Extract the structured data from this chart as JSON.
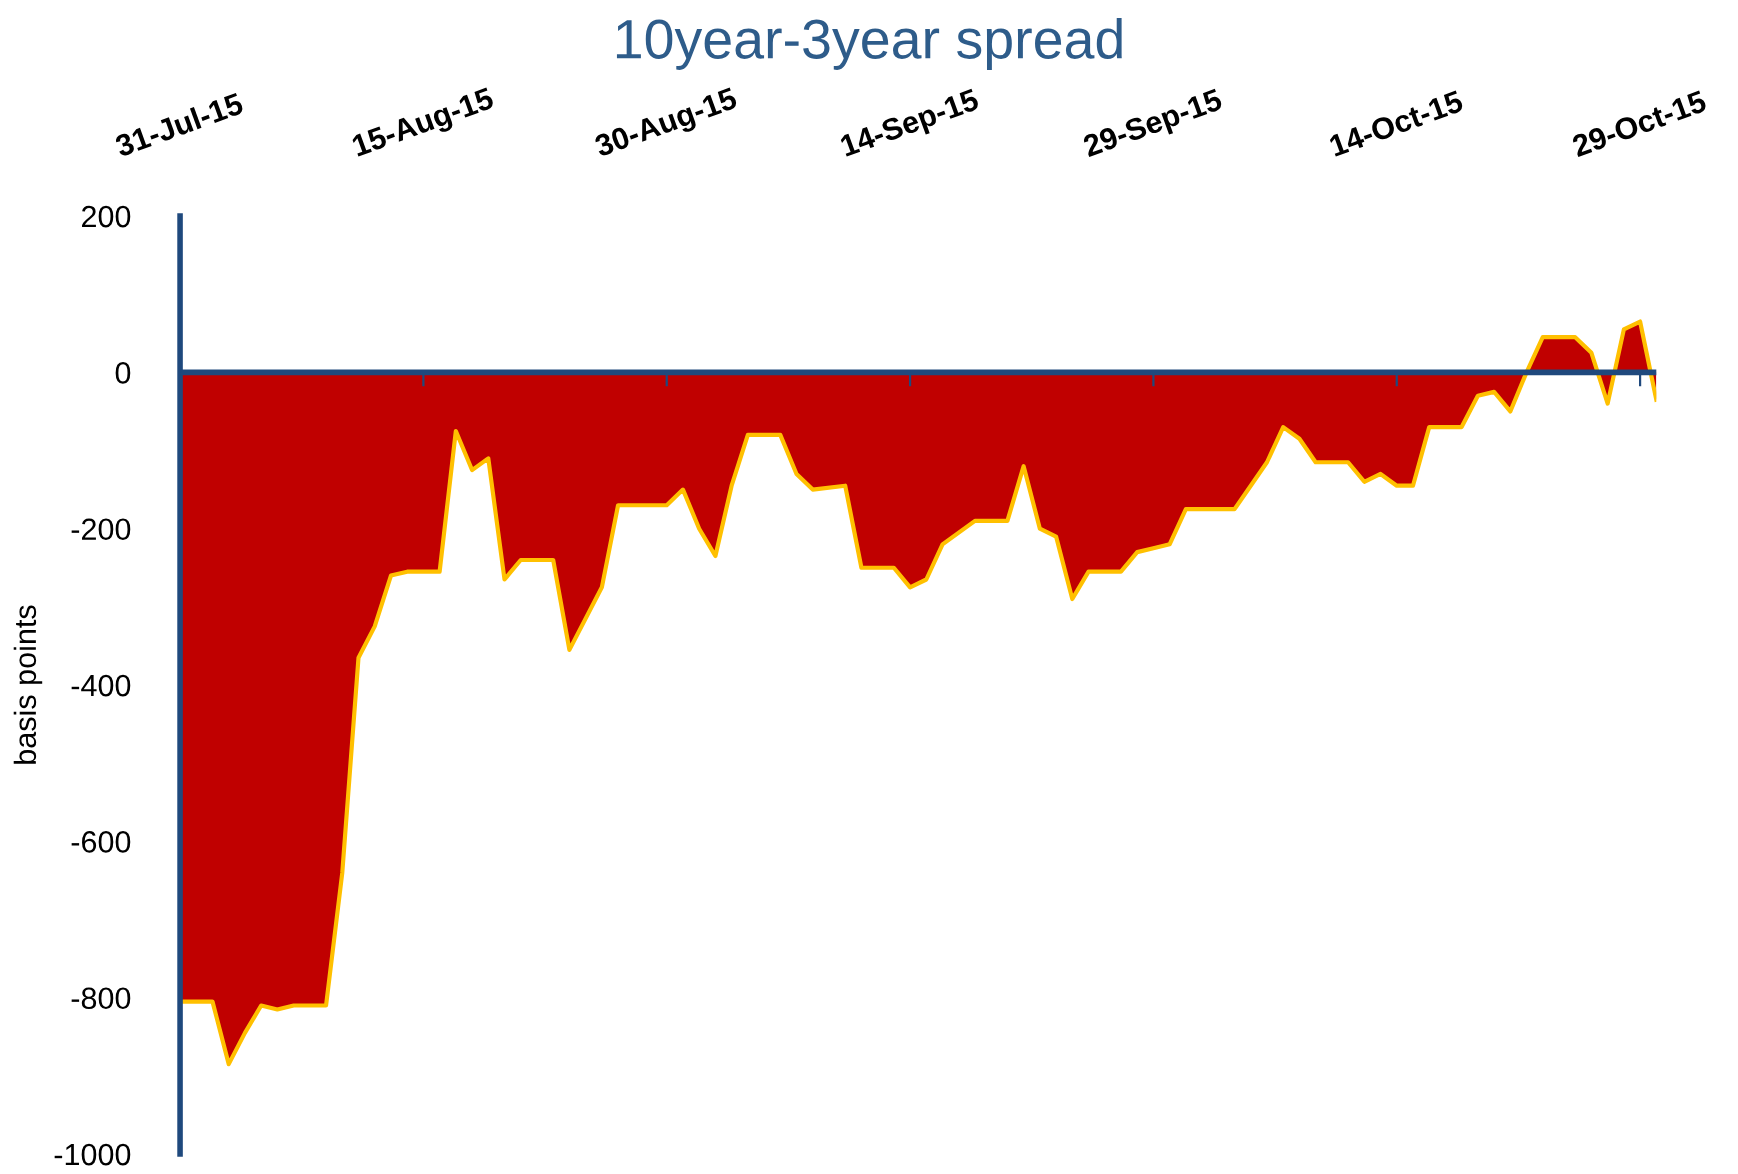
{
  "chart_data": {
    "type": "area",
    "title": "10year-3year spread",
    "ylabel": "basis points",
    "x": [
      "2015-07-31",
      "2015-08-02",
      "2015-08-03",
      "2015-08-04",
      "2015-08-05",
      "2015-08-06",
      "2015-08-07",
      "2015-08-09",
      "2015-08-10",
      "2015-08-11",
      "2015-08-12",
      "2015-08-13",
      "2015-08-14",
      "2015-08-16",
      "2015-08-17",
      "2015-08-18",
      "2015-08-19",
      "2015-08-20",
      "2015-08-21",
      "2015-08-23",
      "2015-08-24",
      "2015-08-26",
      "2015-08-27",
      "2015-08-30",
      "2015-08-31",
      "2015-09-01",
      "2015-09-02",
      "2015-09-03",
      "2015-09-04",
      "2015-09-06",
      "2015-09-07",
      "2015-09-08",
      "2015-09-10",
      "2015-09-11",
      "2015-09-13",
      "2015-09-14",
      "2015-09-15",
      "2015-09-16",
      "2015-09-17",
      "2015-09-18",
      "2015-09-20",
      "2015-09-21",
      "2015-09-22",
      "2015-09-23",
      "2015-09-24",
      "2015-09-25",
      "2015-09-27",
      "2015-09-28",
      "2015-09-29",
      "2015-09-30",
      "2015-10-01",
      "2015-10-04",
      "2015-10-05",
      "2015-10-06",
      "2015-10-07",
      "2015-10-08",
      "2015-10-09",
      "2015-10-11",
      "2015-10-12",
      "2015-10-13",
      "2015-10-14",
      "2015-10-15",
      "2015-10-16",
      "2015-10-18",
      "2015-10-19",
      "2015-10-20",
      "2015-10-21",
      "2015-10-22",
      "2015-10-23",
      "2015-10-25",
      "2015-10-26",
      "2015-10-27",
      "2015-10-28",
      "2015-10-29",
      "2015-10-30"
    ],
    "series": [
      {
        "color": "#c00000",
        "values": [
          -805,
          -805,
          -885,
          -845,
          -810,
          -815,
          -810,
          -810,
          -640,
          -365,
          -325,
          -260,
          -255,
          -255,
          -75,
          -125,
          -110,
          -265,
          -240,
          -240,
          -355,
          -275,
          -170,
          -170,
          -150,
          -200,
          -235,
          -145,
          -80,
          -80,
          -130,
          -150,
          -145,
          -250,
          -250,
          -275,
          -265,
          -220,
          -205,
          -190,
          -190,
          -120,
          -200,
          -210,
          -290,
          -255,
          -255,
          -230,
          -225,
          -220,
          -175,
          -175,
          -145,
          -115,
          -70,
          -85,
          -115,
          -115,
          -140,
          -130,
          -145,
          -145,
          -70,
          -70,
          -30,
          -25,
          -50,
          0,
          45,
          45,
          25,
          -40,
          55,
          65,
          -35
        ]
      }
    ],
    "xlim": [
      "2015-07-31",
      "2015-10-30"
    ],
    "xticks": [
      {
        "value": "2015-07-31",
        "label": "31-Jul-15"
      },
      {
        "value": "2015-08-15",
        "label": "15-Aug-15"
      },
      {
        "value": "2015-08-30",
        "label": "30-Aug-15"
      },
      {
        "value": "2015-09-14",
        "label": "14-Sep-15"
      },
      {
        "value": "2015-09-29",
        "label": "29-Sep-15"
      },
      {
        "value": "2015-10-14",
        "label": "14-Oct-15"
      },
      {
        "value": "2015-10-29",
        "label": "29-Oct-15"
      }
    ],
    "ref_lines": [
      {
        "axis": "y",
        "value": 0,
        "color": "#1f497d"
      }
    ],
    "ylim": [
      -1000,
      200
    ],
    "yticks": [
      -1000,
      -800,
      -600,
      -400,
      -200,
      0,
      200
    ]
  }
}
